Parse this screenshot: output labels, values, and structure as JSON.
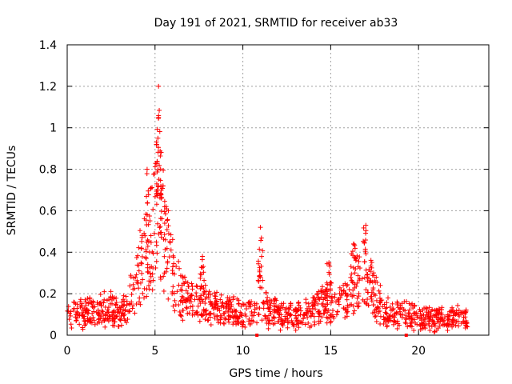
{
  "chart_data": {
    "type": "scatter",
    "title": "Day 191 of 2021, SRMTID for receiver ab33",
    "xlabel": "GPS time / hours",
    "ylabel": "SRMTID / TECUs",
    "xlim": [
      0,
      24
    ],
    "ylim": [
      0,
      1.4
    ],
    "xticks": [
      "0",
      "5",
      "10",
      "15",
      "20"
    ],
    "xtick_values": [
      0,
      5,
      10,
      15,
      20
    ],
    "yticks": [
      "0",
      "0.2",
      "0.4",
      "0.6",
      "0.8",
      "1",
      "1.2",
      "1.4"
    ],
    "ytick_values": [
      0,
      0.2,
      0.4,
      0.6,
      0.8,
      1.0,
      1.2,
      1.4
    ],
    "grid": true,
    "marker": "+",
    "series_color": "#ff0000",
    "baseline_markers_x": [
      10.8,
      19.3
    ],
    "profile_anchors": {
      "x": [
        0,
        0.5,
        1,
        1.5,
        2,
        2.5,
        3,
        3.5,
        4,
        4.5,
        5,
        5.2,
        5.5,
        6,
        6.5,
        7,
        7.5,
        8,
        9,
        10,
        10.7,
        11,
        11.3,
        12,
        13,
        14,
        14.5,
        15,
        15.5,
        16,
        16.5,
        17,
        17.5,
        18,
        18.5,
        19,
        19.5,
        20,
        21,
        22,
        22.8
      ],
      "y": [
        0.09,
        0.1,
        0.1,
        0.11,
        0.12,
        0.13,
        0.09,
        0.15,
        0.28,
        0.4,
        0.55,
        0.7,
        0.48,
        0.3,
        0.2,
        0.16,
        0.18,
        0.13,
        0.12,
        0.1,
        0.12,
        0.22,
        0.12,
        0.1,
        0.09,
        0.12,
        0.15,
        0.16,
        0.14,
        0.2,
        0.25,
        0.3,
        0.2,
        0.12,
        0.1,
        0.1,
        0.09,
        0.08,
        0.08,
        0.08,
        0.09
      ]
    },
    "spike_anchors": {
      "x": [
        4.55,
        5.1,
        5.2,
        5.45,
        7.7,
        11.0,
        14.9,
        16.3,
        17.0
      ],
      "y": [
        0.8,
        0.92,
        1.2,
        0.72,
        0.38,
        0.52,
        0.35,
        0.44,
        0.53
      ]
    }
  }
}
